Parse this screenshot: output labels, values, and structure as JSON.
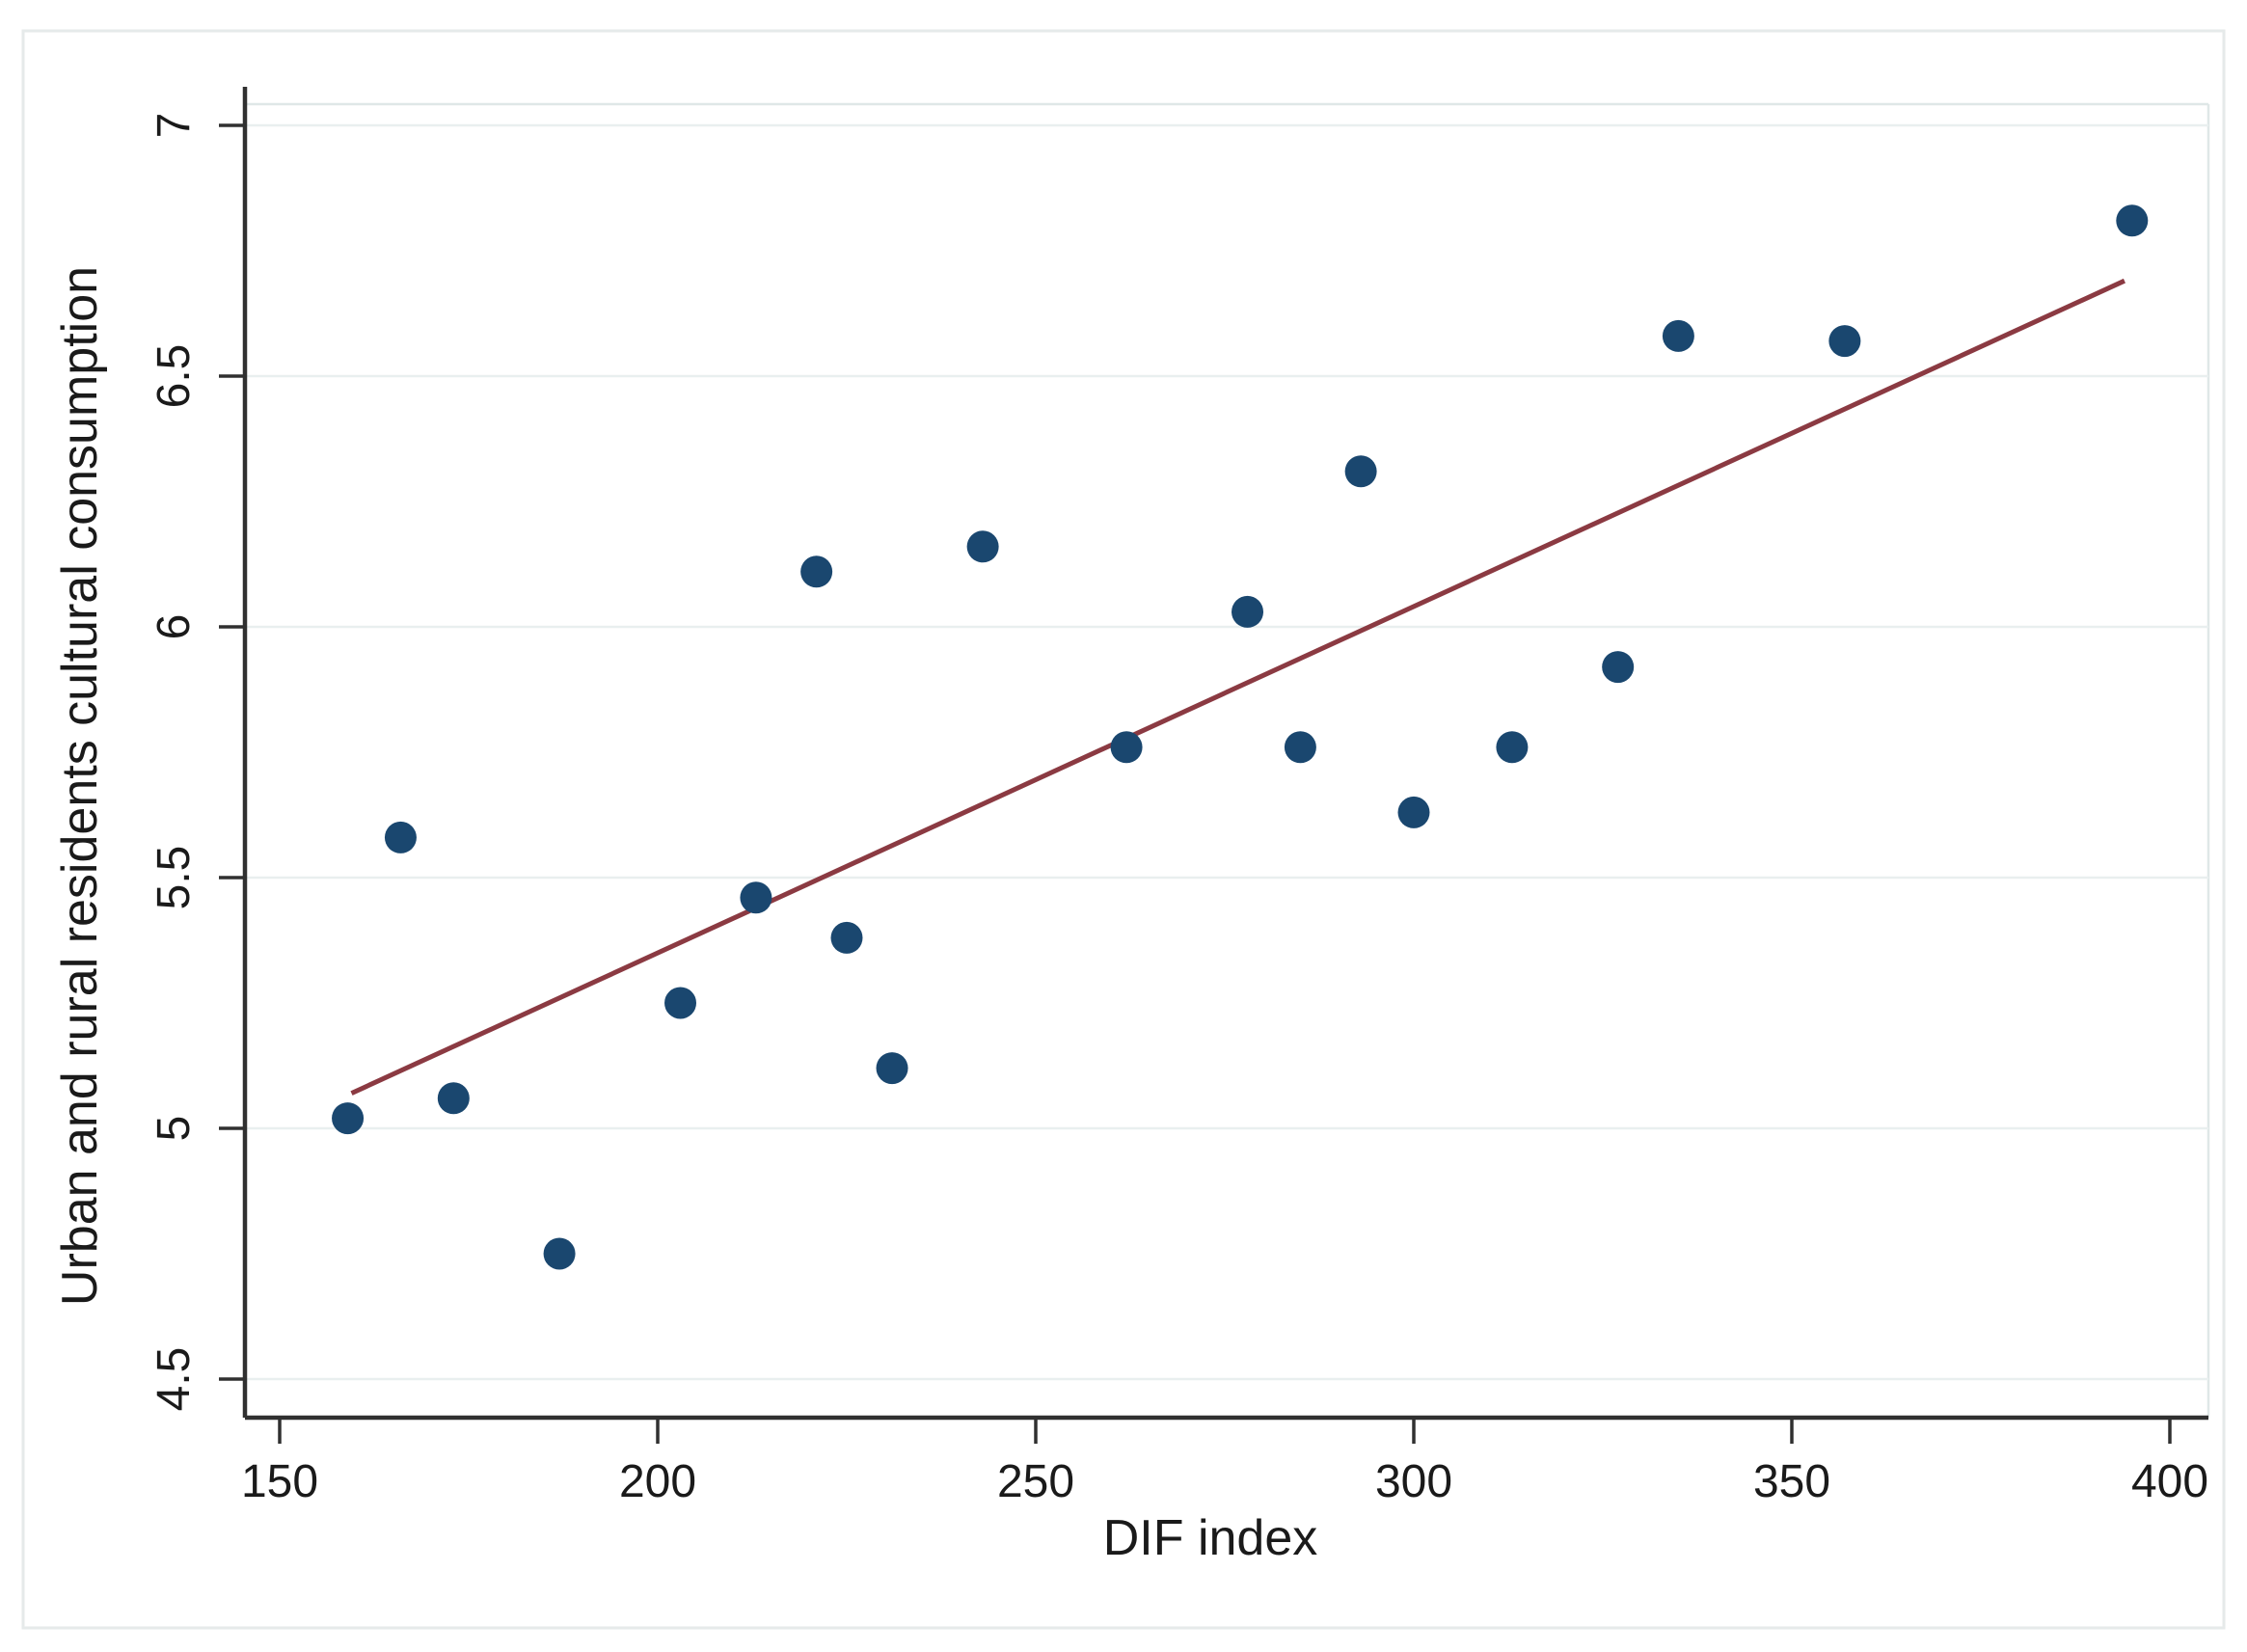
{
  "figure": {
    "xlabel": "DIF index",
    "ylabel": "Urban and rural residents cultural consumption"
  },
  "chart_data": {
    "type": "scatter",
    "title": "",
    "xlabel": "DIF index",
    "ylabel": "Urban and rural residents cultural consumption",
    "xlim": [
      150,
      400
    ],
    "ylim": [
      4.5,
      7
    ],
    "x_ticks": [
      150,
      200,
      250,
      300,
      350,
      400
    ],
    "y_ticks": [
      4.5,
      5,
      5.5,
      6,
      6.5,
      7
    ],
    "grid": "horizontal",
    "legend": "none",
    "series": [
      {
        "name": "observations",
        "marker": "circle",
        "points": [
          [
            159,
            5.02
          ],
          [
            166,
            5.58
          ],
          [
            173,
            5.06
          ],
          [
            187,
            4.75
          ],
          [
            203,
            5.25
          ],
          [
            213,
            5.46
          ],
          [
            221,
            6.11
          ],
          [
            225,
            5.38
          ],
          [
            231,
            5.12
          ],
          [
            243,
            6.16
          ],
          [
            262,
            5.76
          ],
          [
            278,
            6.03
          ],
          [
            285,
            5.76
          ],
          [
            293,
            6.31
          ],
          [
            300,
            5.63
          ],
          [
            313,
            5.76
          ],
          [
            327,
            5.92
          ],
          [
            335,
            6.58
          ],
          [
            357,
            6.57
          ],
          [
            395,
            6.81
          ]
        ]
      }
    ],
    "fit_line": {
      "x1": 159.5,
      "y1": 5.07,
      "x2": 394,
      "y2": 6.69
    },
    "colors": {
      "point": "#1a476f",
      "fit_line": "#8b3a42",
      "grid": "#e9efef",
      "axis": "#303030",
      "plot_border": "#dfe7e7",
      "outer_border": "#e6eaea",
      "text": "#1a1a1a",
      "background": "#ffffff"
    }
  }
}
